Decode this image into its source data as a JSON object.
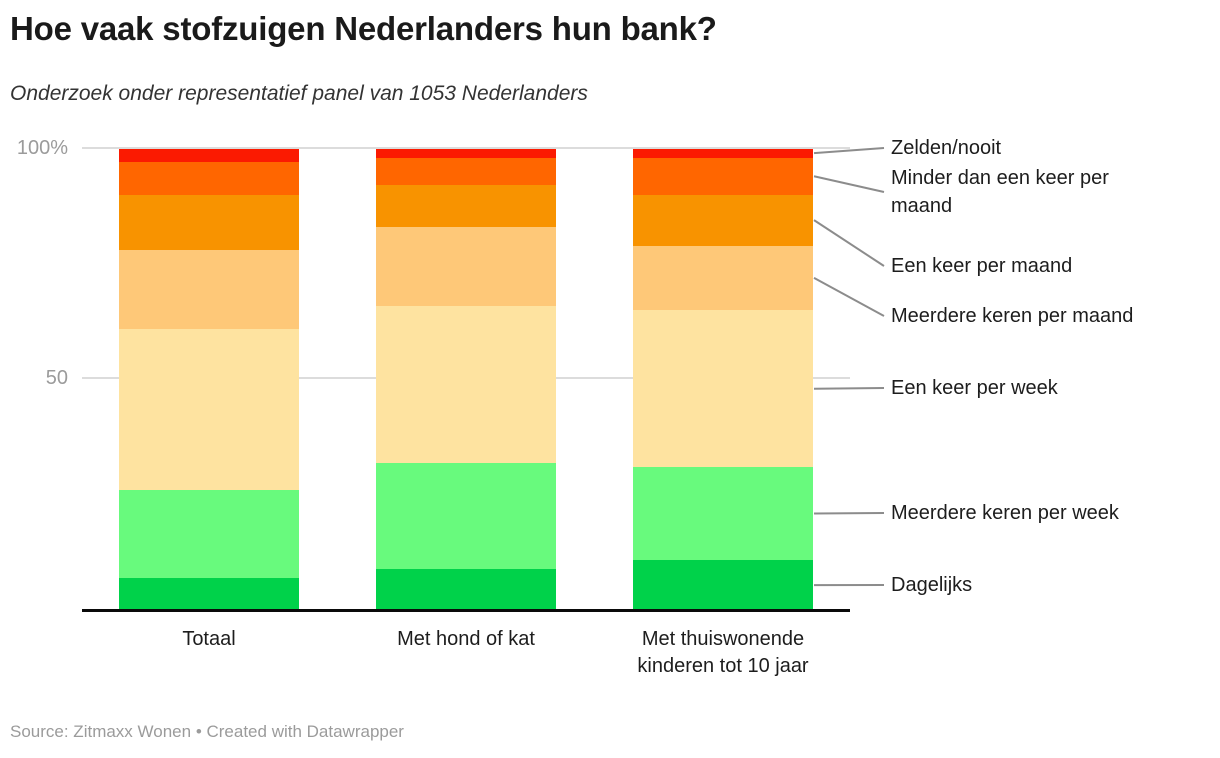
{
  "header": {
    "title": "Hoe vaak stofzuigen Nederlanders hun bank?",
    "subtitle": "Onderzoek onder representatief panel van 1053 Nederlanders"
  },
  "axis": {
    "y_ticks": [
      "100%",
      "50"
    ]
  },
  "footer": {
    "text": "Source: Zitmaxx Wonen • Created with Datawrapper"
  },
  "colors": {
    "background": "#ffffff",
    "title_text": "#1a1a1a",
    "label_text": "#1d1d1d",
    "tick_text": "#9b9b9b",
    "gridline": "#dcdcdc",
    "axis_line": "#0a0a0a",
    "connector": "#8c8c8c",
    "footer_text": "#9b9b9b"
  },
  "chart_data": {
    "type": "bar",
    "stacked": true,
    "unit": "%",
    "title": "Hoe vaak stofzuigen Nederlanders hun bank?",
    "subtitle": "Onderzoek onder representatief panel van 1053 Nederlanders",
    "xlabel": "",
    "ylabel": "",
    "ylim": [
      0,
      100
    ],
    "grid": "horizontal",
    "legend_position": "right-labels",
    "categories": [
      "Totaal",
      "Met hond of kat",
      "Met thuiswonende kinderen tot 10 jaar"
    ],
    "series": [
      {
        "name": "Dagelijks",
        "color": "#00d24a",
        "values": [
          7,
          9,
          11
        ]
      },
      {
        "name": "Meerdere keren per week",
        "color": "#68fa7d",
        "values": [
          19,
          23,
          20
        ]
      },
      {
        "name": "Een keer per week",
        "color": "#fee3a0",
        "values": [
          35,
          34,
          34
        ]
      },
      {
        "name": "Meerdere keren per maand",
        "color": "#fec878",
        "values": [
          17,
          17,
          14
        ]
      },
      {
        "name": "Een keer per maand",
        "color": "#f89300",
        "values": [
          12,
          9,
          11
        ]
      },
      {
        "name": "Minder dan een keer per maand",
        "color": "#ff6600",
        "values": [
          7,
          6,
          8
        ]
      },
      {
        "name": "Zelden/nooit",
        "color": "#fb1a01",
        "values": [
          3,
          2,
          2
        ]
      }
    ]
  }
}
